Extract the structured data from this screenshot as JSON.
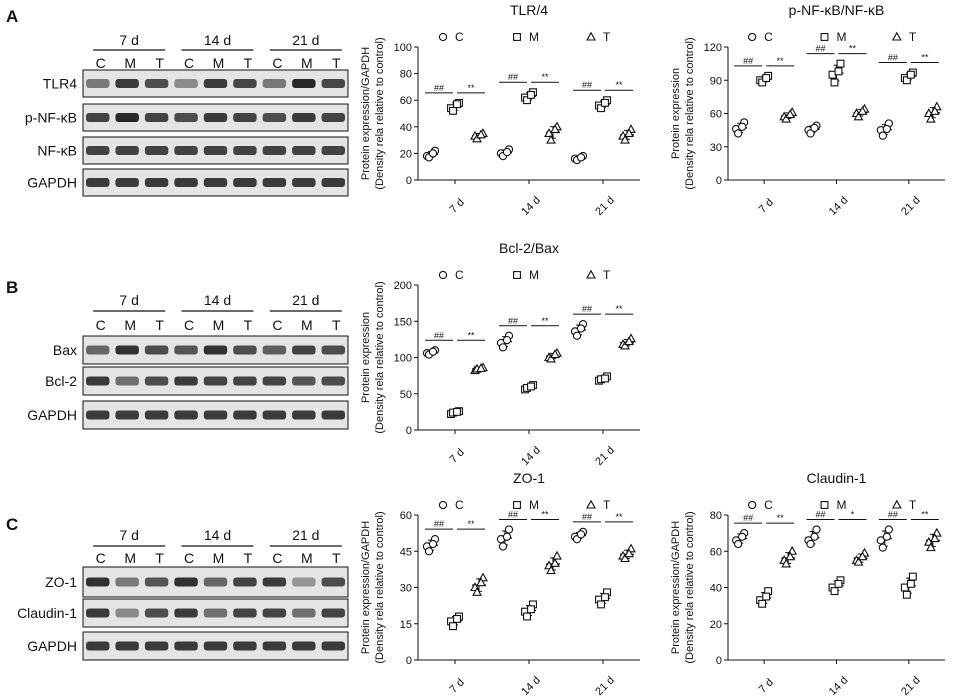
{
  "panel_letters": [
    "A",
    "B",
    "C"
  ],
  "blots": [
    {
      "panel": "A",
      "timepoints": [
        "7 d",
        "14 d",
        "21 d"
      ],
      "lanes": [
        "C",
        "M",
        "T",
        "C",
        "M",
        "T",
        "C",
        "M",
        "T"
      ],
      "rows": [
        {
          "label": "TLR4",
          "band_intensity": [
            0.5,
            0.85,
            0.75,
            0.4,
            0.85,
            0.78,
            0.5,
            0.95,
            0.78
          ]
        },
        {
          "label": "p-NF-κB",
          "band_intensity": [
            0.8,
            0.95,
            0.8,
            0.75,
            0.85,
            0.8,
            0.75,
            0.85,
            0.8
          ]
        },
        {
          "label": "NF-κB",
          "band_intensity": [
            0.8,
            0.8,
            0.8,
            0.8,
            0.8,
            0.8,
            0.8,
            0.8,
            0.8
          ]
        },
        {
          "label": "GAPDH",
          "band_intensity": [
            0.85,
            0.85,
            0.85,
            0.85,
            0.85,
            0.85,
            0.85,
            0.85,
            0.85
          ]
        }
      ]
    },
    {
      "panel": "B",
      "timepoints": [
        "7 d",
        "14 d",
        "21 d"
      ],
      "lanes": [
        "C",
        "M",
        "T",
        "C",
        "M",
        "T",
        "C",
        "M",
        "T"
      ],
      "rows": [
        {
          "label": "Bax",
          "band_intensity": [
            0.6,
            0.9,
            0.75,
            0.7,
            0.9,
            0.75,
            0.65,
            0.8,
            0.75
          ]
        },
        {
          "label": "Bcl-2",
          "band_intensity": [
            0.85,
            0.55,
            0.75,
            0.85,
            0.8,
            0.8,
            0.8,
            0.7,
            0.75
          ]
        },
        {
          "label": "GAPDH",
          "band_intensity": [
            0.85,
            0.85,
            0.85,
            0.85,
            0.85,
            0.85,
            0.85,
            0.85,
            0.85
          ]
        }
      ]
    },
    {
      "panel": "C",
      "timepoints": [
        "7 d",
        "14 d",
        "21 d"
      ],
      "lanes": [
        "C",
        "M",
        "T",
        "C",
        "M",
        "T",
        "C",
        "M",
        "T"
      ],
      "rows": [
        {
          "label": "ZO-1",
          "band_intensity": [
            0.9,
            0.5,
            0.7,
            0.9,
            0.6,
            0.8,
            0.85,
            0.35,
            0.75
          ]
        },
        {
          "label": "Claudin-1",
          "band_intensity": [
            0.85,
            0.4,
            0.75,
            0.85,
            0.55,
            0.8,
            0.8,
            0.55,
            0.8
          ]
        },
        {
          "label": "GAPDH",
          "band_intensity": [
            0.85,
            0.85,
            0.85,
            0.85,
            0.85,
            0.85,
            0.85,
            0.85,
            0.85
          ]
        }
      ]
    }
  ],
  "chart_data": [
    {
      "type": "scatter",
      "title": "TLR/4",
      "ylabel": [
        "Protein expression/GAPDH",
        "(Density rela relative to control)"
      ],
      "categories": [
        "7 d",
        "14 d",
        "21 d"
      ],
      "ylim": [
        0,
        100
      ],
      "yticks": [
        0,
        20,
        40,
        60,
        80,
        100
      ],
      "legend": [
        "C",
        "M",
        "T"
      ],
      "series": [
        {
          "name": "C",
          "marker": "circle",
          "points": [
            [
              18,
              22,
              17,
              20
            ],
            [
              20,
              23,
              18,
              21
            ],
            [
              16,
              18,
              15,
              17
            ]
          ]
        },
        {
          "name": "M",
          "marker": "square",
          "points": [
            [
              54,
              58,
              52,
              57
            ],
            [
              62,
              66,
              60,
              64
            ],
            [
              56,
              60,
              54,
              58
            ]
          ]
        },
        {
          "name": "T",
          "marker": "triangle",
          "points": [
            [
              33,
              35,
              31,
              34
            ],
            [
              35,
              40,
              30,
              38
            ],
            [
              33,
              38,
              30,
              35
            ]
          ]
        }
      ],
      "annotations": [
        [
          "##",
          "**"
        ],
        [
          "##",
          "**"
        ],
        [
          "##",
          "**"
        ]
      ]
    },
    {
      "type": "scatter",
      "title": "p-NF-κB/NF-κB",
      "ylabel": [
        "Protein expression",
        "(Density rela relative to control)"
      ],
      "categories": [
        "7 d",
        "14 d",
        "21 d"
      ],
      "ylim": [
        0,
        120
      ],
      "yticks": [
        0,
        30,
        60,
        90,
        120
      ],
      "legend": [
        "C",
        "M",
        "T"
      ],
      "series": [
        {
          "name": "C",
          "marker": "circle",
          "points": [
            [
              46,
              52,
              42,
              48
            ],
            [
              45,
              49,
              42,
              47
            ],
            [
              45,
              51,
              40,
              46
            ]
          ]
        },
        {
          "name": "M",
          "marker": "square",
          "points": [
            [
              90,
              94,
              88,
              92
            ],
            [
              95,
              105,
              88,
              98
            ],
            [
              92,
              97,
              90,
              95
            ]
          ]
        },
        {
          "name": "T",
          "marker": "triangle",
          "points": [
            [
              57,
              61,
              55,
              59
            ],
            [
              60,
              64,
              57,
              62
            ],
            [
              60,
              66,
              55,
              62
            ]
          ]
        }
      ],
      "annotations": [
        [
          "##",
          "**"
        ],
        [
          "##",
          "**"
        ],
        [
          "##",
          "**"
        ]
      ]
    },
    {
      "type": "scatter",
      "title": "Bcl-2/Bax",
      "ylabel": [
        "Protein expression",
        "(Density rela relative to control)"
      ],
      "categories": [
        "7 d",
        "14 d",
        "21 d"
      ],
      "ylim": [
        0,
        200
      ],
      "yticks": [
        0,
        50,
        100,
        150,
        200
      ],
      "legend": [
        "C",
        "M",
        "T"
      ],
      "series": [
        {
          "name": "C",
          "marker": "circle",
          "points": [
            [
              106,
              110,
              104,
              108
            ],
            [
              120,
              130,
              114,
              124
            ],
            [
              136,
              146,
              130,
              140
            ]
          ]
        },
        {
          "name": "M",
          "marker": "square",
          "points": [
            [
              22,
              26,
              24,
              25
            ],
            [
              56,
              62,
              58,
              60
            ],
            [
              68,
              74,
              70,
              71
            ]
          ]
        },
        {
          "name": "T",
          "marker": "triangle",
          "points": [
            [
              82,
              86,
              84,
              85
            ],
            [
              100,
              106,
              98,
              104
            ],
            [
              118,
              126,
              116,
              122
            ]
          ]
        }
      ],
      "annotations": [
        [
          "##",
          "**"
        ],
        [
          "##",
          "**"
        ],
        [
          "##",
          "**"
        ]
      ]
    },
    {
      "type": "scatter",
      "title": "ZO-1",
      "ylabel": [
        "Protein expression/GAPDH",
        "(Density rela relative to control)"
      ],
      "categories": [
        "7 d",
        "14 d",
        "21 d"
      ],
      "ylim": [
        0,
        60
      ],
      "yticks": [
        0,
        15,
        30,
        45,
        60
      ],
      "legend": [
        "C",
        "M",
        "T"
      ],
      "series": [
        {
          "name": "C",
          "marker": "circle",
          "points": [
            [
              47,
              50,
              45,
              48
            ],
            [
              50,
              54,
              47,
              51
            ],
            [
              51,
              53,
              50,
              52
            ]
          ]
        },
        {
          "name": "M",
          "marker": "square",
          "points": [
            [
              16,
              18,
              14,
              17
            ],
            [
              20,
              23,
              18,
              21
            ],
            [
              25,
              28,
              23,
              26
            ]
          ]
        },
        {
          "name": "T",
          "marker": "triangle",
          "points": [
            [
              30,
              34,
              28,
              32
            ],
            [
              39,
              43,
              37,
              40
            ],
            [
              43,
              46,
              42,
              44
            ]
          ]
        }
      ],
      "annotations": [
        [
          "##",
          "**"
        ],
        [
          "##",
          "**"
        ],
        [
          "##",
          "**"
        ]
      ]
    },
    {
      "type": "scatter",
      "title": "Claudin-1",
      "ylabel": [
        "Protein expression/GAPDH",
        "(Density rela relative to control)"
      ],
      "categories": [
        "7 d",
        "14 d",
        "21 d"
      ],
      "ylim": [
        0,
        80
      ],
      "yticks": [
        0,
        20,
        40,
        60,
        80
      ],
      "legend": [
        "C",
        "M",
        "T"
      ],
      "series": [
        {
          "name": "C",
          "marker": "circle",
          "points": [
            [
              66,
              70,
              64,
              68
            ],
            [
              66,
              72,
              64,
              68
            ],
            [
              66,
              72,
              62,
              68
            ]
          ]
        },
        {
          "name": "M",
          "marker": "square",
          "points": [
            [
              33,
              38,
              31,
              35
            ],
            [
              40,
              44,
              38,
              42
            ],
            [
              40,
              46,
              36,
              42
            ]
          ]
        },
        {
          "name": "T",
          "marker": "triangle",
          "points": [
            [
              55,
              60,
              53,
              57
            ],
            [
              55,
              59,
              54,
              57
            ],
            [
              65,
              70,
              62,
              67
            ]
          ]
        }
      ],
      "annotations": [
        [
          "##",
          "**"
        ],
        [
          "##",
          "*"
        ],
        [
          "##",
          "**"
        ]
      ]
    }
  ]
}
